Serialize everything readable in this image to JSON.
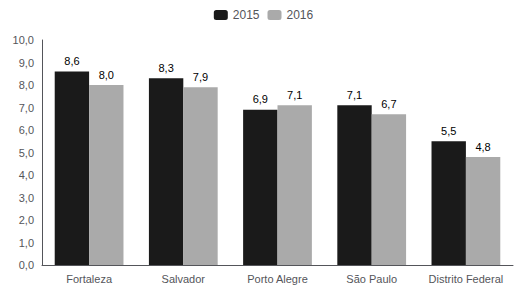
{
  "chart_data": {
    "type": "bar",
    "categories": [
      "Fortaleza",
      "Salvador",
      "Porto Alegre",
      "São Paulo",
      "Distrito Federal"
    ],
    "series": [
      {
        "name": "2015",
        "color": "#1a1a1a",
        "values": [
          8.6,
          8.3,
          6.9,
          7.1,
          5.5
        ],
        "value_labels": [
          "8,6",
          "8,3",
          "6,9",
          "7,1",
          "5,5"
        ]
      },
      {
        "name": "2016",
        "color": "#aaaaaa",
        "values": [
          8.0,
          7.9,
          7.1,
          6.7,
          4.8
        ],
        "value_labels": [
          "8,0",
          "7,9",
          "7,1",
          "6,7",
          "4,8"
        ]
      }
    ],
    "ylim": [
      0,
      10
    ],
    "yticks": [
      {
        "value": 0,
        "label": "0,0"
      },
      {
        "value": 1,
        "label": "1,0"
      },
      {
        "value": 2,
        "label": "2,0"
      },
      {
        "value": 3,
        "label": "3,0"
      },
      {
        "value": 4,
        "label": "4,0"
      },
      {
        "value": 5,
        "label": "5,0"
      },
      {
        "value": 6,
        "label": "6,0"
      },
      {
        "value": 7,
        "label": "7,0"
      },
      {
        "value": 8,
        "label": "8,0"
      },
      {
        "value": 9,
        "label": "9,0"
      },
      {
        "value": 10,
        "label": "10,0"
      }
    ],
    "grid": false,
    "legend": "upper center",
    "data_labels": true
  }
}
